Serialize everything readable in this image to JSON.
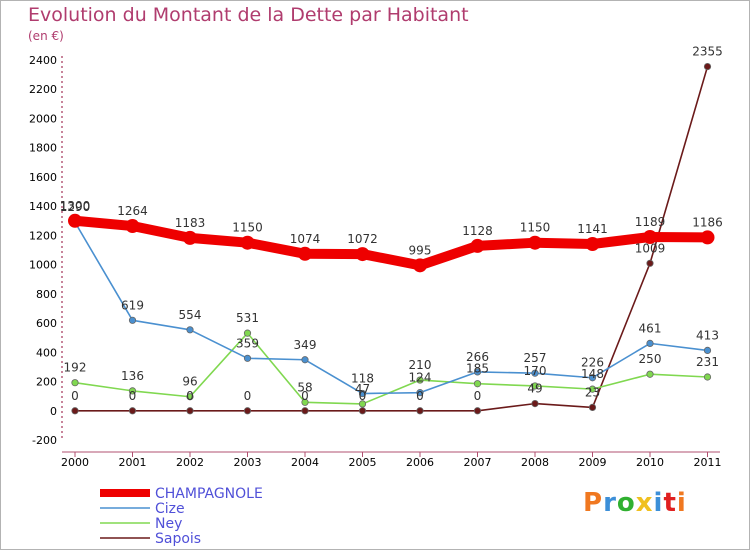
{
  "header": {
    "title": "Evolution du Montant de la Dette par Habitant",
    "subtitle": "(en €)"
  },
  "logo": {
    "text": "Proxiti",
    "colors": [
      "#f07820",
      "#3c8fd8",
      "#30b030",
      "#f0c020",
      "#3c8fd8",
      "#e02020",
      "#f07820"
    ]
  },
  "chart_data": {
    "type": "line",
    "categories": [
      "2000",
      "2001",
      "2002",
      "2003",
      "2004",
      "2005",
      "2006",
      "2007",
      "2008",
      "2009",
      "2010",
      "2011"
    ],
    "ylim": [
      -200,
      2400
    ],
    "yticks": [
      -200,
      0,
      200,
      400,
      600,
      800,
      1000,
      1200,
      1400,
      1600,
      1800,
      2000,
      2200,
      2400
    ],
    "grid": false,
    "legend_position": "bottom-left",
    "series": [
      {
        "name": "CHAMPAGNOLE",
        "color": "#ee0000",
        "values": [
          1300,
          1264,
          1183,
          1150,
          1074,
          1072,
          995,
          1128,
          1150,
          1141,
          1189,
          1186
        ]
      },
      {
        "name": "Cize",
        "color": "#4a90d0",
        "values": [
          1290,
          619,
          554,
          359,
          349,
          118,
          124,
          266,
          257,
          226,
          461,
          413
        ]
      },
      {
        "name": "Ney",
        "color": "#80d850",
        "values": [
          192,
          136,
          96,
          531,
          58,
          47,
          210,
          185,
          170,
          148,
          250,
          231
        ]
      },
      {
        "name": "Sapois",
        "color": "#6b1a1a",
        "values": [
          0,
          0,
          0,
          0,
          0,
          0,
          0,
          0,
          49,
          23,
          1009,
          2355
        ]
      }
    ]
  }
}
